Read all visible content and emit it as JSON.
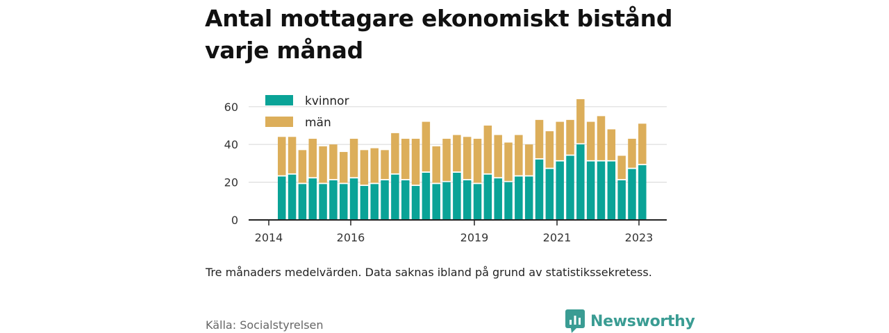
{
  "title": "Antal mottagare ekonomiskt bistånd varje månad",
  "note": "Tre månaders medelvärden. Data saknas ibland på grund av statistikssekretess.",
  "source": "Källa: Socialstyrelsen",
  "brand": "Newsworthy",
  "colors": {
    "kvinnor": "#0aa397",
    "man": "#dcae5a",
    "brand": "#3a9c93"
  },
  "chart_data": {
    "type": "bar",
    "stacked": true,
    "x_tick_labels": [
      "2014",
      "2016",
      "2019",
      "2021",
      "2023"
    ],
    "y_ticks": [
      0,
      20,
      40,
      60
    ],
    "ylim": [
      0,
      70
    ],
    "grid": true,
    "legend_position": "top-left",
    "series": [
      {
        "name": "kvinnor",
        "values": [
          23,
          24,
          19,
          22,
          19,
          21,
          19,
          22,
          18,
          19,
          21,
          24,
          21,
          18,
          25,
          19,
          20,
          25,
          21,
          19,
          24,
          22,
          20,
          23,
          23,
          32,
          27,
          31,
          34,
          40,
          31,
          31,
          31,
          21,
          27,
          29
        ]
      },
      {
        "name": "män",
        "values": [
          21,
          20,
          18,
          21,
          20,
          19,
          17,
          21,
          19,
          19,
          16,
          22,
          22,
          25,
          27,
          20,
          23,
          20,
          23,
          24,
          26,
          23,
          21,
          22,
          17,
          21,
          20,
          21,
          19,
          24,
          21,
          24,
          17,
          13,
          16,
          22
        ]
      }
    ]
  }
}
